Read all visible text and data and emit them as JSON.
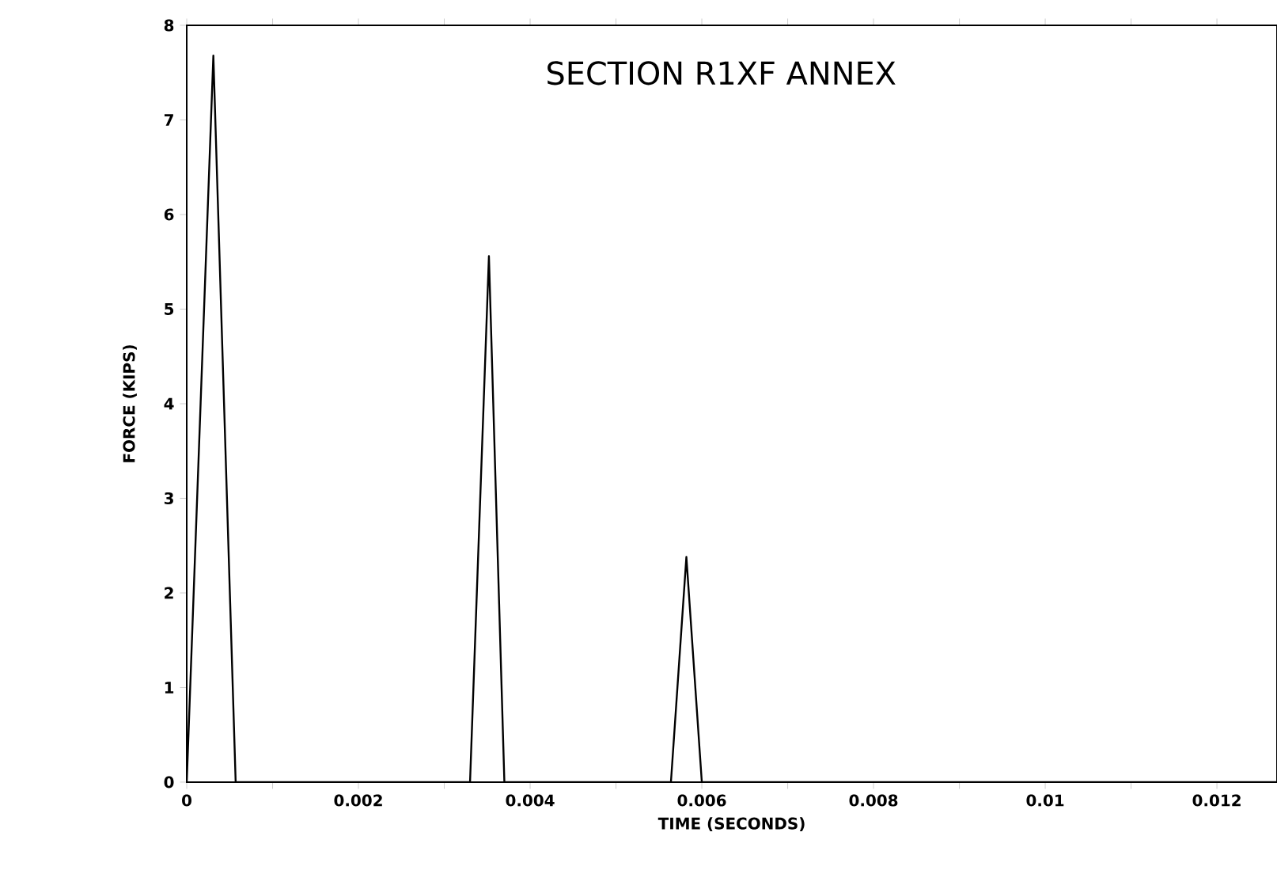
{
  "chart_data": {
    "type": "line",
    "title": "SECTION R1XF ANNEX",
    "xlabel": "TIME (SECONDS)",
    "ylabel": "FORCE (KIPS)",
    "x": [
      0,
      0.00031,
      0.00057,
      0.0033,
      0.00352,
      0.0037,
      0.00564,
      0.00582,
      0.006,
      0.0127
    ],
    "series": [
      {
        "color": "#000000",
        "values": [
          0,
          7.68,
          0,
          0,
          5.56,
          0,
          0,
          2.38,
          0,
          0
        ]
      }
    ],
    "xlim": [
      0,
      0.0127
    ],
    "ylim": [
      0,
      8
    ],
    "xticks": [
      {
        "value": 0,
        "label": "0"
      },
      {
        "value": 0.001,
        "label": null
      },
      {
        "value": 0.002,
        "label": "0.002"
      },
      {
        "value": 0.003,
        "label": null
      },
      {
        "value": 0.004,
        "label": "0.004"
      },
      {
        "value": 0.005,
        "label": null
      },
      {
        "value": 0.006,
        "label": "0.006"
      },
      {
        "value": 0.007,
        "label": null
      },
      {
        "value": 0.008,
        "label": "0.008"
      },
      {
        "value": 0.009,
        "label": null
      },
      {
        "value": 0.01,
        "label": "0.01"
      },
      {
        "value": 0.011,
        "label": null
      },
      {
        "value": 0.012,
        "label": "0.012"
      }
    ],
    "yticks": [
      0,
      1,
      2,
      3,
      4,
      5,
      6,
      7,
      8
    ],
    "grid": false,
    "marker": "none",
    "line_style": "solid"
  }
}
